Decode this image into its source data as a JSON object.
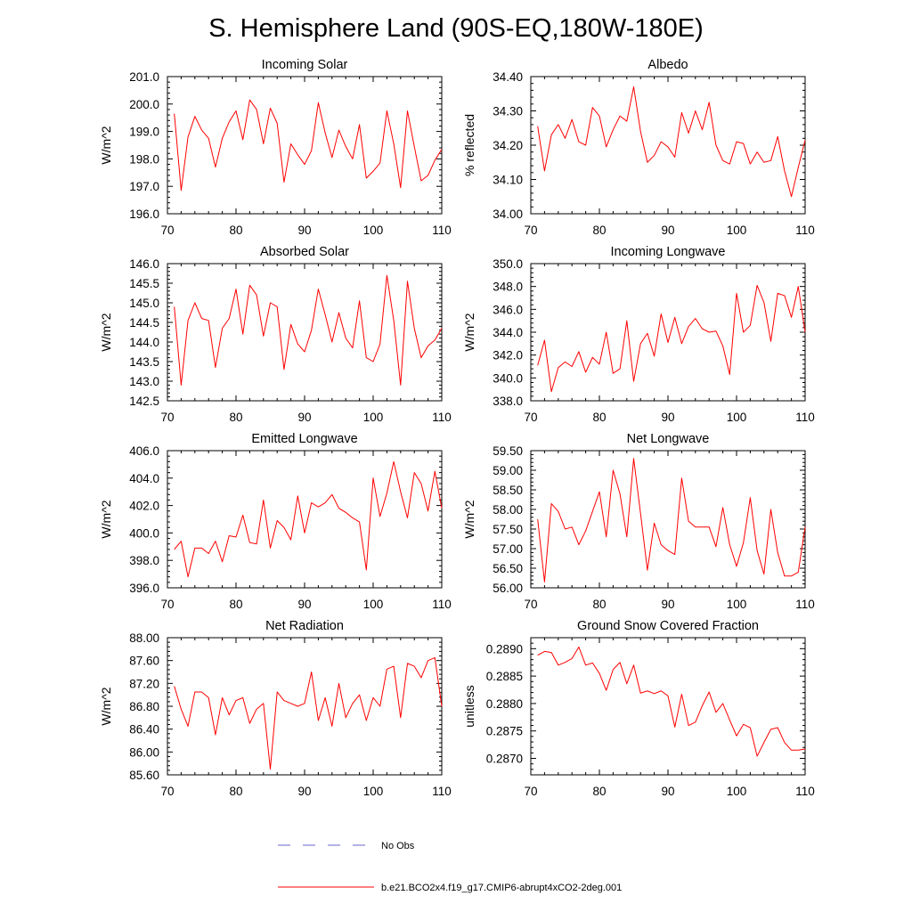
{
  "figure": {
    "title": "S. Hemisphere Land (90S-EQ,180W-180E)",
    "legend": [
      {
        "label": "No Obs",
        "color": "#6666cc",
        "style": "dashed"
      },
      {
        "label": "b.e21.BCO2x4.f19_g17.CMIP6-abrupt4xCO2-2deg.001",
        "color": "#ff0000",
        "style": "solid"
      }
    ]
  },
  "chart_data": [
    {
      "type": "line",
      "title": "Incoming Solar",
      "xlabel": "",
      "ylabel": "W/m^2",
      "xlim": [
        70,
        110
      ],
      "ylim": [
        196.0,
        201.0
      ],
      "xticks": [
        70,
        80,
        90,
        100,
        110
      ],
      "xtick_labels": [
        "70",
        "80",
        "90",
        "100",
        "110"
      ],
      "yticks": [
        196,
        197,
        198,
        199,
        200,
        201
      ],
      "ytick_labels": [
        "196.0",
        "197.0",
        "198.0",
        "199.0",
        "200.0",
        "201.0"
      ],
      "series": [
        {
          "name": "b.e21.BCO2x4.f19_g17.CMIP6-abrupt4xCO2-2deg.001",
          "color": "#ff0000",
          "x": [
            71,
            72,
            73,
            74,
            75,
            76,
            77,
            78,
            79,
            80,
            81,
            82,
            83,
            84,
            85,
            86,
            87,
            88,
            89,
            90,
            91,
            92,
            93,
            94,
            95,
            96,
            97,
            98,
            99,
            100,
            101,
            102,
            103,
            104,
            105,
            106,
            107,
            108,
            109,
            110
          ],
          "y": [
            199.65,
            196.85,
            198.8,
            199.55,
            199.05,
            198.75,
            197.7,
            198.75,
            199.35,
            199.75,
            198.7,
            200.15,
            199.8,
            198.55,
            199.85,
            199.3,
            197.15,
            198.55,
            198.15,
            197.8,
            198.3,
            200.05,
            198.95,
            198.05,
            199.05,
            198.45,
            198.0,
            199.25,
            197.3,
            197.55,
            197.85,
            199.75,
            198.55,
            196.95,
            199.75,
            198.45,
            197.2,
            197.4,
            197.95,
            198.35
          ]
        }
      ]
    },
    {
      "type": "line",
      "title": "Albedo",
      "xlabel": "",
      "ylabel": "% reflected",
      "xlim": [
        70,
        110
      ],
      "ylim": [
        34.0,
        34.4
      ],
      "xticks": [
        70,
        80,
        90,
        100,
        110
      ],
      "xtick_labels": [
        "70",
        "80",
        "90",
        "100",
        "110"
      ],
      "yticks": [
        34.0,
        34.1,
        34.2,
        34.3,
        34.4
      ],
      "ytick_labels": [
        "34.00",
        "34.10",
        "34.20",
        "34.30",
        "34.40"
      ],
      "series": [
        {
          "name": "b.e21.BCO2x4.f19_g17.CMIP6-abrupt4xCO2-2deg.001",
          "color": "#ff0000",
          "x": [
            71,
            72,
            73,
            74,
            75,
            76,
            77,
            78,
            79,
            80,
            81,
            82,
            83,
            84,
            85,
            86,
            87,
            88,
            89,
            90,
            91,
            92,
            93,
            94,
            95,
            96,
            97,
            98,
            99,
            100,
            101,
            102,
            103,
            104,
            105,
            106,
            107,
            108,
            109,
            110
          ],
          "y": [
            34.255,
            34.125,
            34.23,
            34.26,
            34.22,
            34.275,
            34.21,
            34.2,
            34.31,
            34.285,
            34.195,
            34.245,
            34.285,
            34.27,
            34.37,
            34.24,
            34.15,
            34.17,
            34.21,
            34.195,
            34.165,
            34.295,
            34.235,
            34.3,
            34.245,
            34.325,
            34.2,
            34.155,
            34.145,
            34.21,
            34.205,
            34.145,
            34.18,
            34.15,
            34.155,
            34.225,
            34.125,
            34.05,
            34.135,
            34.215
          ]
        }
      ]
    },
    {
      "type": "line",
      "title": "Absorbed Solar",
      "xlabel": "",
      "ylabel": "W/m^2",
      "xlim": [
        70,
        110
      ],
      "ylim": [
        142.5,
        146.0
      ],
      "xticks": [
        70,
        80,
        90,
        100,
        110
      ],
      "xtick_labels": [
        "70",
        "80",
        "90",
        "100",
        "110"
      ],
      "yticks": [
        142.5,
        143.0,
        143.5,
        144.0,
        144.5,
        145.0,
        145.5,
        146.0
      ],
      "ytick_labels": [
        "142.5",
        "143.0",
        "143.5",
        "144.0",
        "144.5",
        "145.0",
        "145.5",
        "146.0"
      ],
      "series": [
        {
          "name": "b.e21.BCO2x4.f19_g17.CMIP6-abrupt4xCO2-2deg.001",
          "color": "#ff0000",
          "x": [
            71,
            72,
            73,
            74,
            75,
            76,
            77,
            78,
            79,
            80,
            81,
            82,
            83,
            84,
            85,
            86,
            87,
            88,
            89,
            90,
            91,
            92,
            93,
            94,
            95,
            96,
            97,
            98,
            99,
            100,
            101,
            102,
            103,
            104,
            105,
            106,
            107,
            108,
            109,
            110
          ],
          "y": [
            144.9,
            142.9,
            144.55,
            145.0,
            144.6,
            144.55,
            143.35,
            144.35,
            144.6,
            145.35,
            144.2,
            145.45,
            145.2,
            144.15,
            145.0,
            144.9,
            143.3,
            144.45,
            143.95,
            143.75,
            144.3,
            145.35,
            144.7,
            144.0,
            144.75,
            144.1,
            143.85,
            145.05,
            143.6,
            143.5,
            143.95,
            145.7,
            144.55,
            142.9,
            145.55,
            144.35,
            143.6,
            143.9,
            144.05,
            144.35
          ]
        }
      ]
    },
    {
      "type": "line",
      "title": "Incoming Longwave",
      "xlabel": "",
      "ylabel": "W/m^2",
      "xlim": [
        70,
        110
      ],
      "ylim": [
        338.0,
        350.0
      ],
      "xticks": [
        70,
        80,
        90,
        100,
        110
      ],
      "xtick_labels": [
        "70",
        "80",
        "90",
        "100",
        "110"
      ],
      "yticks": [
        338,
        340,
        342,
        344,
        346,
        348,
        350
      ],
      "ytick_labels": [
        "338.0",
        "340.0",
        "342.0",
        "344.0",
        "346.0",
        "348.0",
        "350.0"
      ],
      "series": [
        {
          "name": "b.e21.BCO2x4.f19_g17.CMIP6-abrupt4xCO2-2deg.001",
          "color": "#ff0000",
          "x": [
            71,
            72,
            73,
            74,
            75,
            76,
            77,
            78,
            79,
            80,
            81,
            82,
            83,
            84,
            85,
            86,
            87,
            88,
            89,
            90,
            91,
            92,
            93,
            94,
            95,
            96,
            97,
            98,
            99,
            100,
            101,
            102,
            103,
            104,
            105,
            106,
            107,
            108,
            109,
            110
          ],
          "y": [
            341.1,
            343.3,
            338.8,
            340.9,
            341.4,
            341.0,
            342.3,
            340.5,
            341.8,
            341.2,
            344.0,
            340.4,
            340.8,
            345.0,
            339.7,
            343.0,
            343.9,
            341.9,
            345.6,
            343.1,
            345.3,
            343.0,
            344.5,
            345.2,
            344.3,
            344.0,
            344.1,
            342.8,
            340.3,
            347.4,
            344.0,
            344.6,
            348.1,
            346.6,
            343.2,
            347.4,
            347.2,
            345.3,
            348.0,
            344.0
          ]
        }
      ]
    },
    {
      "type": "line",
      "title": "Emitted Longwave",
      "xlabel": "",
      "ylabel": "W/m^2",
      "xlim": [
        70,
        110
      ],
      "ylim": [
        396.0,
        406.0
      ],
      "xticks": [
        70,
        80,
        90,
        100,
        110
      ],
      "xtick_labels": [
        "70",
        "80",
        "90",
        "100",
        "110"
      ],
      "yticks": [
        396,
        398,
        400,
        402,
        404,
        406
      ],
      "ytick_labels": [
        "396.0",
        "398.0",
        "400.0",
        "402.0",
        "404.0",
        "406.0"
      ],
      "series": [
        {
          "name": "b.e21.BCO2x4.f19_g17.CMIP6-abrupt4xCO2-2deg.001",
          "color": "#ff0000",
          "x": [
            71,
            72,
            73,
            74,
            75,
            76,
            77,
            78,
            79,
            80,
            81,
            82,
            83,
            84,
            85,
            86,
            87,
            88,
            89,
            90,
            91,
            92,
            93,
            94,
            95,
            96,
            97,
            98,
            99,
            100,
            101,
            102,
            103,
            104,
            105,
            106,
            107,
            108,
            109,
            110
          ],
          "y": [
            398.8,
            399.4,
            396.8,
            398.9,
            398.9,
            398.5,
            399.4,
            397.9,
            399.8,
            399.7,
            401.3,
            399.3,
            399.2,
            402.4,
            398.9,
            400.9,
            400.4,
            399.5,
            402.7,
            400.0,
            402.2,
            401.9,
            402.2,
            402.8,
            401.8,
            401.5,
            401.1,
            400.8,
            397.3,
            404.0,
            401.2,
            402.9,
            405.2,
            403.0,
            401.1,
            404.4,
            403.6,
            401.6,
            404.5,
            401.8
          ]
        }
      ]
    },
    {
      "type": "line",
      "title": "Net Longwave",
      "xlabel": "",
      "ylabel": "W/m^2",
      "xlim": [
        70,
        110
      ],
      "ylim": [
        56.0,
        59.5
      ],
      "xticks": [
        70,
        80,
        90,
        100,
        110
      ],
      "xtick_labels": [
        "70",
        "80",
        "90",
        "100",
        "110"
      ],
      "yticks": [
        56.0,
        56.5,
        57.0,
        57.5,
        58.0,
        58.5,
        59.0,
        59.5
      ],
      "ytick_labels": [
        "56.00",
        "56.50",
        "57.00",
        "57.50",
        "58.00",
        "58.50",
        "59.00",
        "59.50"
      ],
      "series": [
        {
          "name": "b.e21.BCO2x4.f19_g17.CMIP6-abrupt4xCO2-2deg.001",
          "color": "#ff0000",
          "x": [
            71,
            72,
            73,
            74,
            75,
            76,
            77,
            78,
            79,
            80,
            81,
            82,
            83,
            84,
            85,
            86,
            87,
            88,
            89,
            90,
            91,
            92,
            93,
            94,
            95,
            96,
            97,
            98,
            99,
            100,
            101,
            102,
            103,
            104,
            105,
            106,
            107,
            108,
            109,
            110
          ],
          "y": [
            57.75,
            56.15,
            58.15,
            57.95,
            57.5,
            57.55,
            57.1,
            57.45,
            57.95,
            58.45,
            57.3,
            59.0,
            58.4,
            57.3,
            59.3,
            57.9,
            56.45,
            57.65,
            57.1,
            56.95,
            56.85,
            58.8,
            57.7,
            57.55,
            57.55,
            57.55,
            57.05,
            58.05,
            57.1,
            56.55,
            57.15,
            58.3,
            56.95,
            56.35,
            58.0,
            56.9,
            56.3,
            56.3,
            56.4,
            57.55
          ]
        }
      ]
    },
    {
      "type": "line",
      "title": "Net Radiation",
      "xlabel": "",
      "ylabel": "W/m^2",
      "xlim": [
        70,
        110
      ],
      "ylim": [
        85.6,
        88.0
      ],
      "xticks": [
        70,
        80,
        90,
        100,
        110
      ],
      "xtick_labels": [
        "70",
        "80",
        "90",
        "100",
        "110"
      ],
      "yticks": [
        85.6,
        86.0,
        86.4,
        86.8,
        87.2,
        87.6,
        88.0
      ],
      "ytick_labels": [
        "85.60",
        "86.00",
        "86.40",
        "86.80",
        "87.20",
        "87.60",
        "88.00"
      ],
      "series": [
        {
          "name": "b.e21.BCO2x4.f19_g17.CMIP6-abrupt4xCO2-2deg.001",
          "color": "#ff0000",
          "x": [
            71,
            72,
            73,
            74,
            75,
            76,
            77,
            78,
            79,
            80,
            81,
            82,
            83,
            84,
            85,
            86,
            87,
            88,
            89,
            90,
            91,
            92,
            93,
            94,
            95,
            96,
            97,
            98,
            99,
            100,
            101,
            102,
            103,
            104,
            105,
            106,
            107,
            108,
            109,
            110
          ],
          "y": [
            87.15,
            86.75,
            86.45,
            87.05,
            87.05,
            86.95,
            86.3,
            86.95,
            86.65,
            86.9,
            86.95,
            86.5,
            86.75,
            86.85,
            85.7,
            87.05,
            86.9,
            86.85,
            86.8,
            86.85,
            87.4,
            86.55,
            86.95,
            86.45,
            87.2,
            86.6,
            86.85,
            87.0,
            86.55,
            86.95,
            86.8,
            87.45,
            87.5,
            86.6,
            87.55,
            87.5,
            87.3,
            87.6,
            87.65,
            86.8
          ]
        }
      ]
    },
    {
      "type": "line",
      "title": "Ground Snow Covered Fraction",
      "xlabel": "",
      "ylabel": "unitless",
      "xlim": [
        70,
        110
      ],
      "ylim": [
        0.2867,
        0.2892
      ],
      "xticks": [
        70,
        80,
        90,
        100,
        110
      ],
      "xtick_labels": [
        "70",
        "80",
        "90",
        "100",
        "110"
      ],
      "yticks": [
        0.287,
        0.2875,
        0.288,
        0.2885,
        0.289
      ],
      "ytick_labels": [
        "0.2870",
        "0.2875",
        "0.2880",
        "0.2885",
        "0.2890"
      ],
      "series": [
        {
          "name": "b.e21.BCO2x4.f19_g17.CMIP6-abrupt4xCO2-2deg.001",
          "color": "#ff0000",
          "x": [
            71,
            72,
            73,
            74,
            75,
            76,
            77,
            78,
            79,
            80,
            81,
            82,
            83,
            84,
            85,
            86,
            87,
            88,
            89,
            90,
            91,
            92,
            93,
            94,
            95,
            96,
            97,
            98,
            99,
            100,
            101,
            102,
            103,
            104,
            105,
            106,
            107,
            108,
            109,
            110
          ],
          "y": [
            0.28888,
            0.28895,
            0.28893,
            0.2887,
            0.28875,
            0.28882,
            0.28903,
            0.2887,
            0.28874,
            0.28855,
            0.28824,
            0.28862,
            0.28875,
            0.28836,
            0.2887,
            0.28819,
            0.28823,
            0.28818,
            0.28823,
            0.28814,
            0.28757,
            0.28817,
            0.2876,
            0.28766,
            0.28796,
            0.28821,
            0.28784,
            0.288,
            0.2877,
            0.28741,
            0.28762,
            0.28756,
            0.28704,
            0.28729,
            0.28753,
            0.28756,
            0.28729,
            0.28715,
            0.28715,
            0.28717
          ]
        }
      ]
    }
  ]
}
